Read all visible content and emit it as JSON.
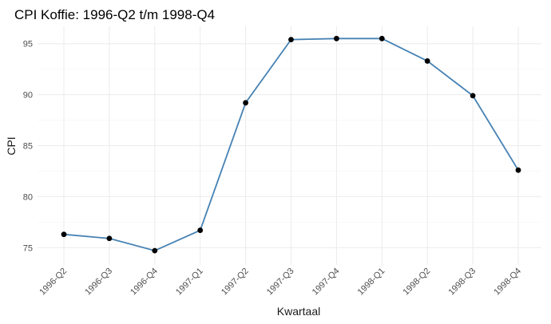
{
  "chart_data": {
    "type": "line",
    "title": "CPI Koffie: 1996-Q2 t/m 1998-Q4",
    "xlabel": "Kwartaal",
    "ylabel": "CPI",
    "categories": [
      "1996-Q2",
      "1996-Q3",
      "1996-Q4",
      "1997-Q1",
      "1997-Q2",
      "1997-Q3",
      "1997-Q4",
      "1998-Q1",
      "1998-Q2",
      "1998-Q3",
      "1998-Q4"
    ],
    "values": [
      76.3,
      75.9,
      74.7,
      76.7,
      89.2,
      95.4,
      95.5,
      95.5,
      93.3,
      89.9,
      82.6
    ],
    "ylim": [
      73.3,
      96.7
    ],
    "yticks": [
      75,
      80,
      85,
      90,
      95
    ],
    "grid": true,
    "line_color": "#4682b4",
    "point_color": "#000000"
  }
}
